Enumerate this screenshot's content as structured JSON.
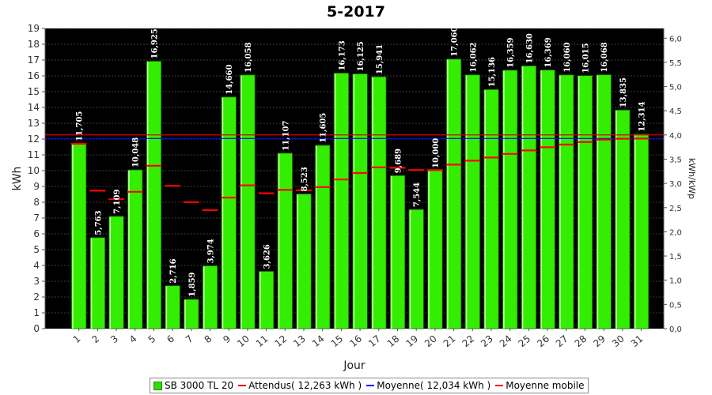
{
  "chart_data": {
    "type": "bar",
    "title": "5-2017",
    "xlabel": "Jour",
    "ylabel": "kWh",
    "y2label": "kWh/kWp",
    "ylim": [
      0,
      19
    ],
    "y2lim": [
      0,
      6.2
    ],
    "yticks": [
      "0",
      "1",
      "2",
      "3",
      "4",
      "5",
      "6",
      "7",
      "8",
      "9",
      "10",
      "11",
      "12",
      "13",
      "14",
      "15",
      "16",
      "17",
      "18",
      "19"
    ],
    "y2ticks": [
      "0,0",
      "0,5",
      "1,0",
      "1,5",
      "2,0",
      "2,5",
      "3,0",
      "3,5",
      "4,0",
      "4,5",
      "5,0",
      "5,5",
      "6,0"
    ],
    "categories": [
      "1",
      "2",
      "3",
      "4",
      "5",
      "6",
      "7",
      "8",
      "9",
      "10",
      "11",
      "12",
      "13",
      "14",
      "15",
      "16",
      "17",
      "18",
      "19",
      "20",
      "21",
      "22",
      "23",
      "24",
      "25",
      "26",
      "27",
      "28",
      "29",
      "30",
      "31"
    ],
    "series": [
      {
        "name": "SB 3000 TL 20",
        "values": [
          11.705,
          5.763,
          7.109,
          10.048,
          16.925,
          2.716,
          1.859,
          3.974,
          14.66,
          16.058,
          3.626,
          11.107,
          8.523,
          11.605,
          16.173,
          16.125,
          15.941,
          9.689,
          7.544,
          10.0,
          17.06,
          16.062,
          15.136,
          16.359,
          16.63,
          16.369,
          16.06,
          16.015,
          16.068,
          13.835,
          12.314
        ],
        "labels": [
          "11,705",
          "5,763",
          "7,109",
          "10,048",
          "16,925",
          "2,716",
          "1,859",
          "3,974",
          "14,660",
          "16,058",
          "3,626",
          "11,107",
          "8,523",
          "11,605",
          "16,173",
          "16,125",
          "15,941",
          "9,689",
          "7,544",
          "10,000",
          "17,060",
          "16,062",
          "15,136",
          "16,359",
          "16,630",
          "16,369",
          "16,060",
          "16,015",
          "16,068",
          "13,835",
          "12,314"
        ],
        "color": "#33ee00"
      },
      {
        "name": "Moyenne mobile",
        "values": [
          11.7,
          8.73,
          8.19,
          8.66,
          10.31,
          9.04,
          8.01,
          7.5,
          8.29,
          9.07,
          8.57,
          8.78,
          8.76,
          8.96,
          9.44,
          9.85,
          10.21,
          10.18,
          10.04,
          10.04,
          10.38,
          10.63,
          10.83,
          11.06,
          11.28,
          11.48,
          11.65,
          11.81,
          11.96,
          12.02,
          12.03
        ],
        "color": "#ff0000"
      }
    ],
    "reference_lines": [
      {
        "name": "Attendus( 12,263 kWh )",
        "value": 12.263,
        "color": "#dd0000"
      },
      {
        "name": "Moyenne( 12,034 kWh )",
        "value": 12.034,
        "color": "#0000ff"
      }
    ],
    "legend_position": "bottom",
    "grid": true
  },
  "legend": {
    "items": [
      {
        "label": "SB 3000 TL 20"
      },
      {
        "label": "Attendus( 12,263 kWh )"
      },
      {
        "label": "Moyenne( 12,034 kWh )"
      },
      {
        "label": "Moyenne mobile"
      }
    ]
  },
  "colors": {
    "plot_background": "#000000",
    "bar_fill": "#33ee00",
    "bar_edge": "#ccffaa",
    "label_color": "#ffffff",
    "expected_line": "#dd0000",
    "average_line": "#0000ff",
    "moving_avg": "#ff0000"
  }
}
